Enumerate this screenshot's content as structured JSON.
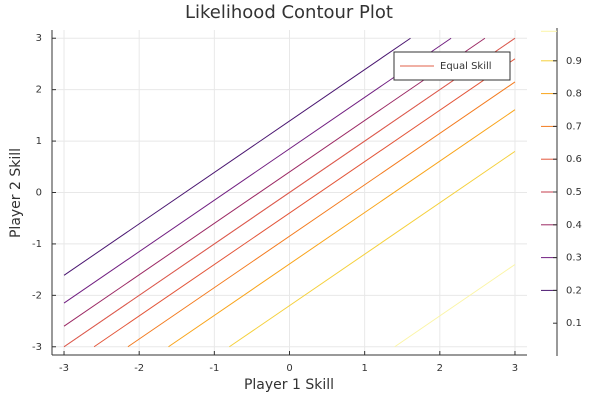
{
  "chart_data": {
    "type": "contour",
    "title": "Likelihood Contour Plot",
    "x_label": "Player 1 Skill",
    "y_label": "Player 2 Skill",
    "xlim": [
      -3.16,
      3.16
    ],
    "ylim": [
      -3.16,
      3.16
    ],
    "xticks": [
      -3,
      -2,
      -1,
      0,
      1,
      2,
      3
    ],
    "yticks": [
      -3,
      -2,
      -1,
      0,
      1,
      2,
      3
    ],
    "grid": true,
    "legend": "top right",
    "series": [
      {
        "name": "Equal Skill",
        "color": "#e2604a",
        "x": [
          -3,
          3
        ],
        "y": [
          -3,
          3
        ]
      }
    ],
    "contours": [
      {
        "level": 0.2,
        "color": "#4a1670",
        "x": [
          -3,
          1.61
        ],
        "y": [
          -1.61,
          3
        ]
      },
      {
        "level": 0.3,
        "color": "#711f81",
        "x": [
          -3,
          2.15
        ],
        "y": [
          -2.15,
          3
        ]
      },
      {
        "level": 0.4,
        "color": "#9b2964",
        "x": [
          -3,
          2.6
        ],
        "y": [
          -2.6,
          3
        ]
      },
      {
        "level": 0.5,
        "color": "#c43c4e",
        "x": [
          -3,
          3
        ],
        "y": [
          -3,
          3
        ]
      },
      {
        "level": 0.6,
        "color": "#e3563a",
        "x": [
          -2.6,
          3
        ],
        "y": [
          -3,
          2.6
        ]
      },
      {
        "level": 0.7,
        "color": "#f37b1f",
        "x": [
          -2.15,
          3
        ],
        "y": [
          -3,
          2.15
        ]
      },
      {
        "level": 0.8,
        "color": "#f9a41a",
        "x": [
          -1.61,
          3
        ],
        "y": [
          -3,
          1.61
        ]
      },
      {
        "level": 0.9,
        "color": "#f5d03c",
        "x": [
          -0.8,
          3
        ],
        "y": [
          -3,
          0.8
        ]
      },
      {
        "level": 0.99,
        "color": "#fbf5a6",
        "x": [
          1.4,
          3
        ],
        "y": [
          -3,
          -1.4
        ]
      }
    ],
    "clim": [
      0,
      1
    ],
    "cticks": [
      0.1,
      0.2,
      0.3,
      0.4,
      0.5,
      0.6,
      0.7,
      0.8,
      0.9
    ]
  }
}
